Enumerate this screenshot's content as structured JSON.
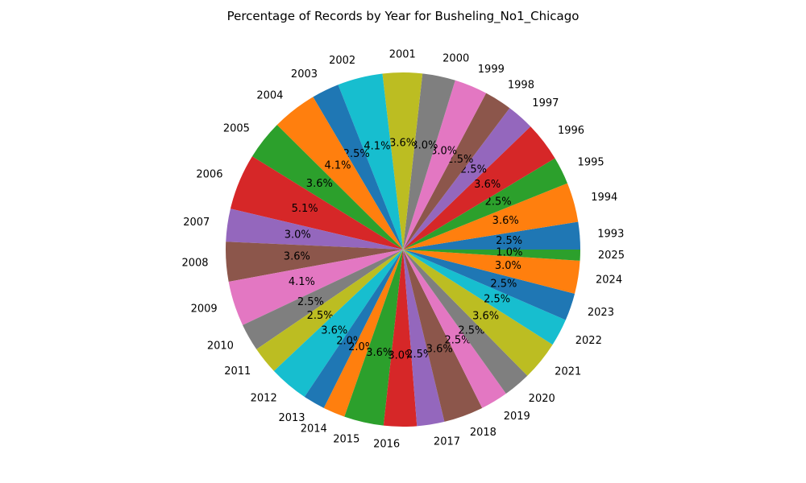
{
  "chart_data": {
    "type": "pie",
    "title": "Percentage of Records by Year for Busheling_No1_Chicago",
    "start_angle_deg": 0,
    "direction": "counterclockwise",
    "slices": [
      {
        "label": "1993",
        "pct": 2.5,
        "color": "#1f77b4"
      },
      {
        "label": "1994",
        "pct": 3.6,
        "color": "#ff7f0e"
      },
      {
        "label": "1995",
        "pct": 2.5,
        "color": "#2ca02c"
      },
      {
        "label": "1996",
        "pct": 3.6,
        "color": "#d62728"
      },
      {
        "label": "1997",
        "pct": 2.5,
        "color": "#9467bd"
      },
      {
        "label": "1998",
        "pct": 2.5,
        "color": "#8c564b"
      },
      {
        "label": "1999",
        "pct": 3.0,
        "color": "#e377c2"
      },
      {
        "label": "2000",
        "pct": 3.0,
        "color": "#7f7f7f"
      },
      {
        "label": "2001",
        "pct": 3.6,
        "color": "#bcbd22"
      },
      {
        "label": "2002",
        "pct": 4.1,
        "color": "#17becf"
      },
      {
        "label": "2003",
        "pct": 2.5,
        "color": "#1f77b4"
      },
      {
        "label": "2004",
        "pct": 4.1,
        "color": "#ff7f0e"
      },
      {
        "label": "2005",
        "pct": 3.6,
        "color": "#2ca02c"
      },
      {
        "label": "2006",
        "pct": 5.1,
        "color": "#d62728"
      },
      {
        "label": "2007",
        "pct": 3.0,
        "color": "#9467bd"
      },
      {
        "label": "2008",
        "pct": 3.6,
        "color": "#8c564b"
      },
      {
        "label": "2009",
        "pct": 4.1,
        "color": "#e377c2"
      },
      {
        "label": "2010",
        "pct": 2.5,
        "color": "#7f7f7f"
      },
      {
        "label": "2011",
        "pct": 2.5,
        "color": "#bcbd22"
      },
      {
        "label": "2012",
        "pct": 3.6,
        "color": "#17becf"
      },
      {
        "label": "2013",
        "pct": 2.0,
        "color": "#1f77b4"
      },
      {
        "label": "2014",
        "pct": 2.0,
        "color": "#ff7f0e"
      },
      {
        "label": "2015",
        "pct": 3.6,
        "color": "#2ca02c"
      },
      {
        "label": "2016",
        "pct": 3.0,
        "color": "#d62728"
      },
      {
        "label": "2017",
        "pct": 2.5,
        "color": "#9467bd"
      },
      {
        "label": "2018",
        "pct": 3.6,
        "color": "#8c564b"
      },
      {
        "label": "2019",
        "pct": 2.5,
        "color": "#e377c2"
      },
      {
        "label": "2020",
        "pct": 2.5,
        "color": "#7f7f7f"
      },
      {
        "label": "2021",
        "pct": 3.6,
        "color": "#bcbd22"
      },
      {
        "label": "2022",
        "pct": 2.5,
        "color": "#17becf"
      },
      {
        "label": "2023",
        "pct": 2.5,
        "color": "#1f77b4"
      },
      {
        "label": "2024",
        "pct": 3.0,
        "color": "#ff7f0e"
      },
      {
        "label": "2025",
        "pct": 1.0,
        "color": "#2ca02c"
      }
    ]
  }
}
